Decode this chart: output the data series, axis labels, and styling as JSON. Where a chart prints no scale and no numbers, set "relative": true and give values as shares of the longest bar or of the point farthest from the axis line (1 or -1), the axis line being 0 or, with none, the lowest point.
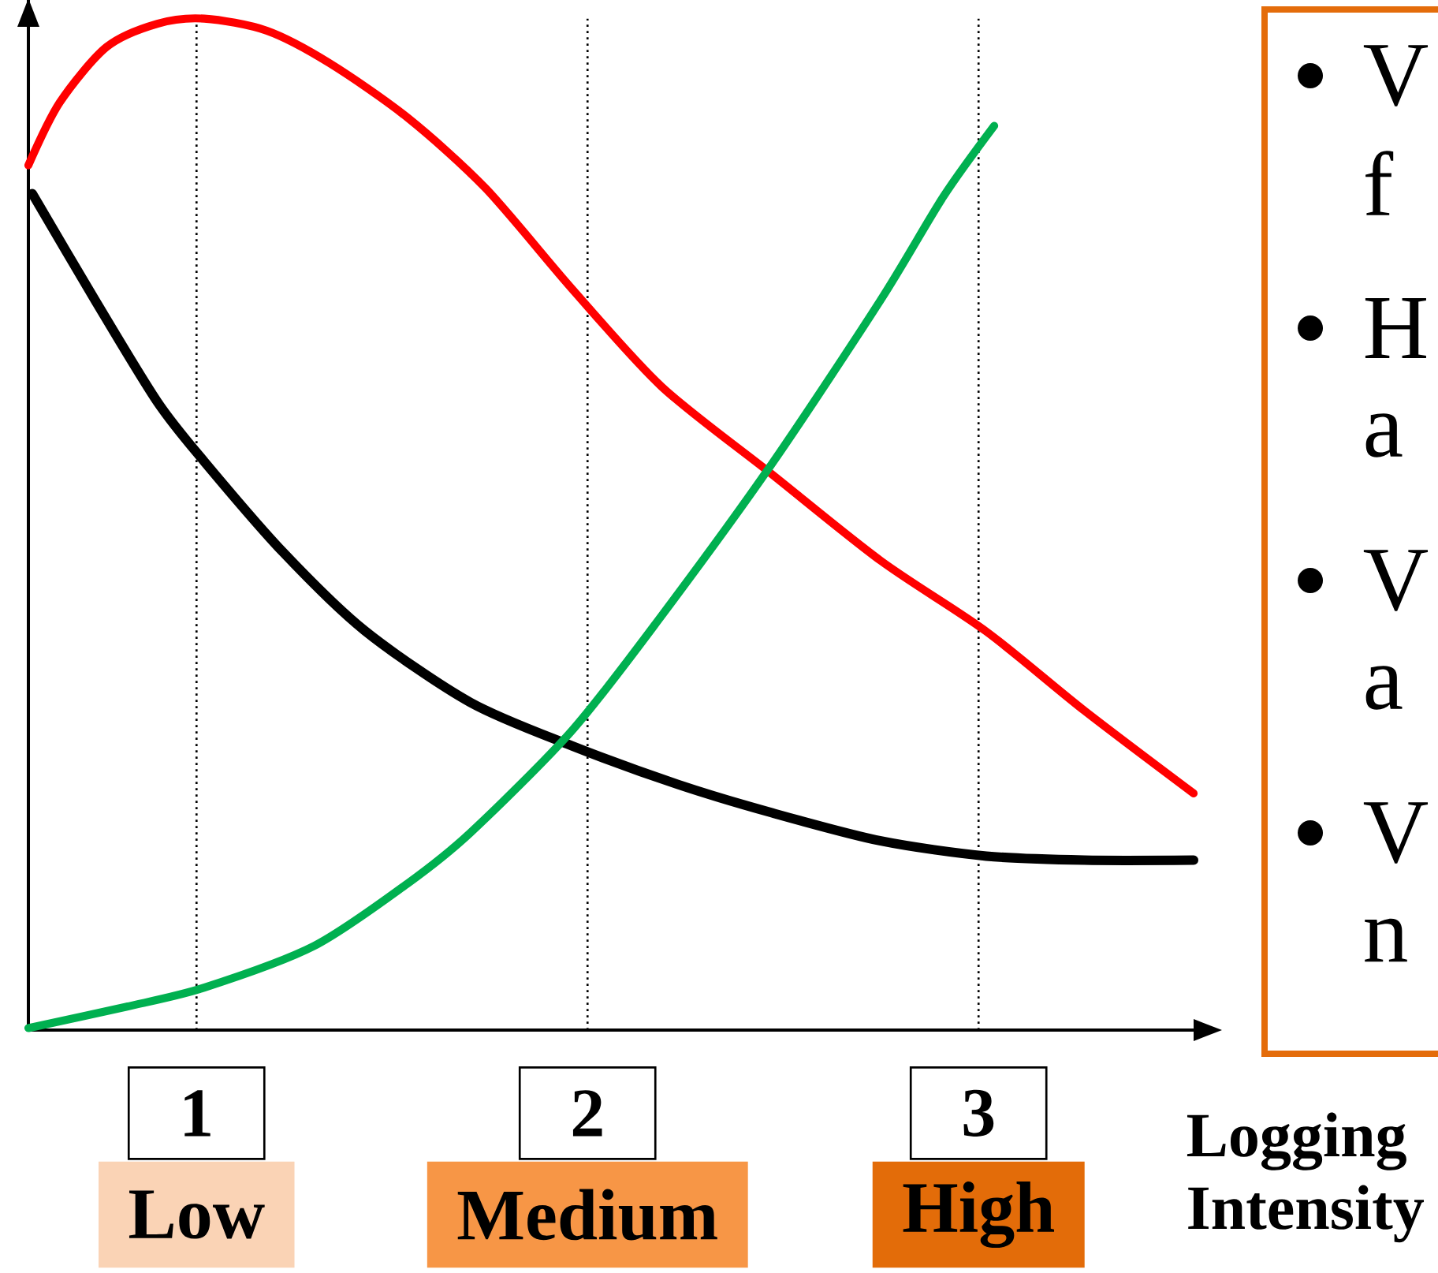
{
  "chart_data": {
    "type": "line",
    "relative": true,
    "xlabel": "Logging Intensity",
    "xlim": [
      0.57,
      3.55
    ],
    "xticks": [
      1,
      2,
      3
    ],
    "x": [
      0.57,
      0.65,
      0.77,
      0.9,
      1.02,
      1.18,
      1.34,
      1.54,
      1.74,
      1.96,
      2.19,
      2.47,
      2.75,
      3.02,
      3.27,
      3.55
    ],
    "series": [
      {
        "color": "#ff0000",
        "values": [
          0.855,
          0.917,
          0.972,
          0.995,
          1.0,
          0.988,
          0.956,
          0.902,
          0.832,
          0.733,
          0.636,
          0.55,
          0.464,
          0.394,
          0.316,
          0.234
        ]
      },
      {
        "color": "#000000",
        "x": [
          0.58,
          0.74,
          0.9,
          1.02,
          1.22,
          1.43,
          1.7,
          1.96,
          2.23,
          2.47,
          2.75,
          3.02,
          3.27,
          3.55
        ],
        "values": [
          0.827,
          0.722,
          0.621,
          0.562,
          0.473,
          0.395,
          0.324,
          0.281,
          0.243,
          0.215,
          0.187,
          0.172,
          0.168,
          0.168
        ]
      },
      {
        "color": "#00b050",
        "x": [
          0.57,
          0.82,
          1.02,
          1.3,
          1.54,
          1.7,
          1.96,
          2.19,
          2.47,
          2.75,
          2.91,
          3.04
        ],
        "values": [
          0.002,
          0.023,
          0.042,
          0.083,
          0.145,
          0.195,
          0.296,
          0.41,
          0.559,
          0.722,
          0.824,
          0.894
        ]
      }
    ],
    "ref_lines": [
      {
        "axis": "x",
        "value": 1,
        "color": "#000000",
        "line_style": "dotted"
      },
      {
        "axis": "x",
        "value": 2,
        "color": "#000000",
        "line_style": "dotted"
      },
      {
        "axis": "x",
        "value": 3,
        "color": "#000000",
        "line_style": "dotted"
      }
    ],
    "annotations": [
      "Low",
      "Medium",
      "High",
      "V",
      "f",
      "H",
      "a",
      "V",
      "a",
      "V",
      "n"
    ]
  }
}
